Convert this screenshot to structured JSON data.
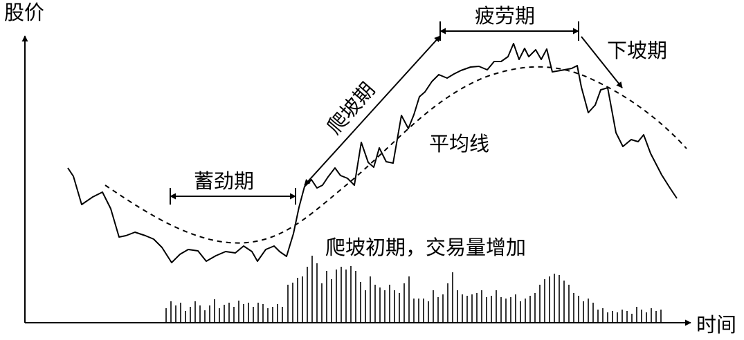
{
  "axes": {
    "y_label": "股价",
    "x_label": "时间"
  },
  "labels": {
    "accumulation": "蓄劲期",
    "climb": "爬坡期",
    "fatigue": "疲劳期",
    "decline": "下坡期",
    "moving_average": "平均线",
    "early_climb_note": "爬坡初期，交易量增加"
  },
  "colors": {
    "line": "#000000",
    "background": "#ffffff"
  }
}
